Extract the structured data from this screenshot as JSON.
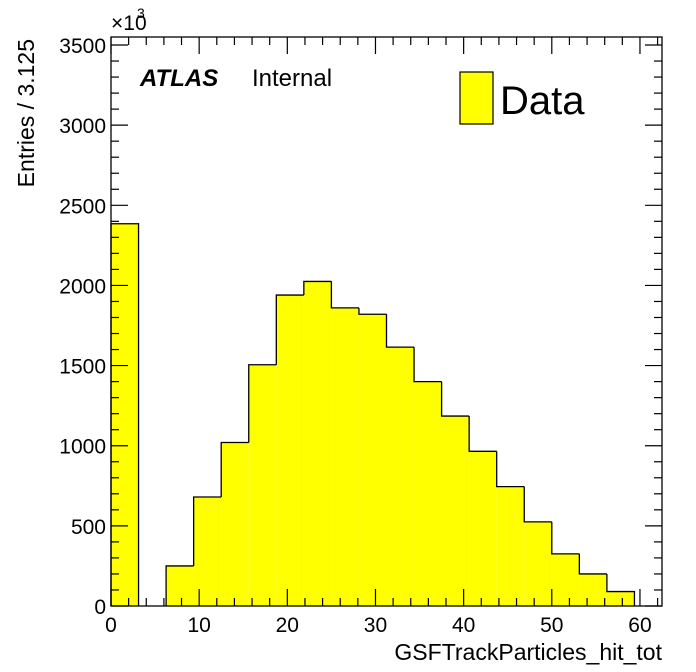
{
  "chart_data": {
    "type": "bar",
    "histogram": true,
    "xlabel": "GSFTrackParticles_hit_tot",
    "ylabel": "Entries / 3.125",
    "y_scale_label": "×10",
    "y_scale_exponent": "3",
    "xlim": [
      0,
      62.5
    ],
    "ylim": [
      0,
      3550
    ],
    "x_ticks": [
      0,
      10,
      20,
      30,
      40,
      50,
      60
    ],
    "y_ticks": [
      0,
      500,
      1000,
      1500,
      2000,
      2500,
      3000,
      3500
    ],
    "bin_width": 3.125,
    "bin_edges_start": 0,
    "series": [
      {
        "name": "Data",
        "values": [
          2385,
          0,
          250,
          680,
          1020,
          1505,
          1940,
          2025,
          1860,
          1820,
          1615,
          1400,
          1185,
          965,
          745,
          525,
          325,
          200,
          90,
          0
        ],
        "color": "#ffff00",
        "edge_color": "#000000"
      }
    ],
    "labels": {
      "atlas": "ATLAS",
      "internal": "Internal"
    },
    "legend": {
      "placement": "top-right",
      "entries": [
        "Data"
      ]
    },
    "grid": false
  }
}
